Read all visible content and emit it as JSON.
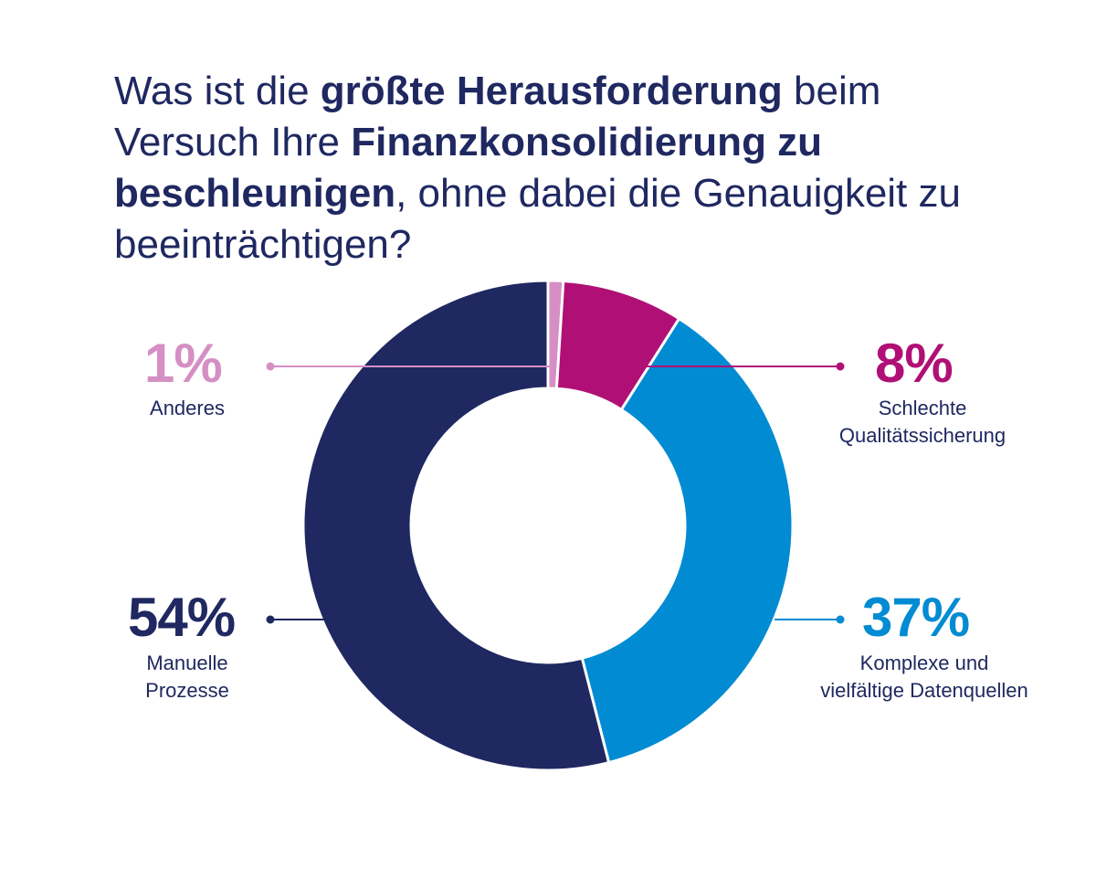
{
  "title": {
    "parts": [
      {
        "text": "Was ist die ",
        "bold": false
      },
      {
        "text": "größte Herausforderung",
        "bold": true
      },
      {
        "text": " beim Versuch Ihre ",
        "bold": false
      },
      {
        "text": "Finanzkonsolidierung zu beschleunigen",
        "bold": true
      },
      {
        "text": ", ohne dabei die Genauigkeit zu beeinträchtigen?",
        "bold": false
      }
    ]
  },
  "chart_data": {
    "type": "pie",
    "donut": true,
    "legend": "none",
    "slices": [
      {
        "label": "Anderes",
        "value": 1,
        "value_label": "1%",
        "color": "#d58fc4"
      },
      {
        "label": "Schlechte Qualitätssicherung",
        "label_lines": [
          "Schlechte",
          "Qualitätssicherung"
        ],
        "value": 8,
        "value_label": "8%",
        "color": "#b01076"
      },
      {
        "label": "Komplexe und vielfältige Datenquellen",
        "label_lines": [
          "Komplexe und",
          "vielfältige Datenquellen"
        ],
        "value": 37,
        "value_label": "37%",
        "color": "#008bd2"
      },
      {
        "label": "Manuelle Prozesse",
        "label_lines": [
          "Manuelle",
          "Prozesse"
        ],
        "value": 54,
        "value_label": "54%",
        "color": "#1f2860"
      }
    ]
  }
}
